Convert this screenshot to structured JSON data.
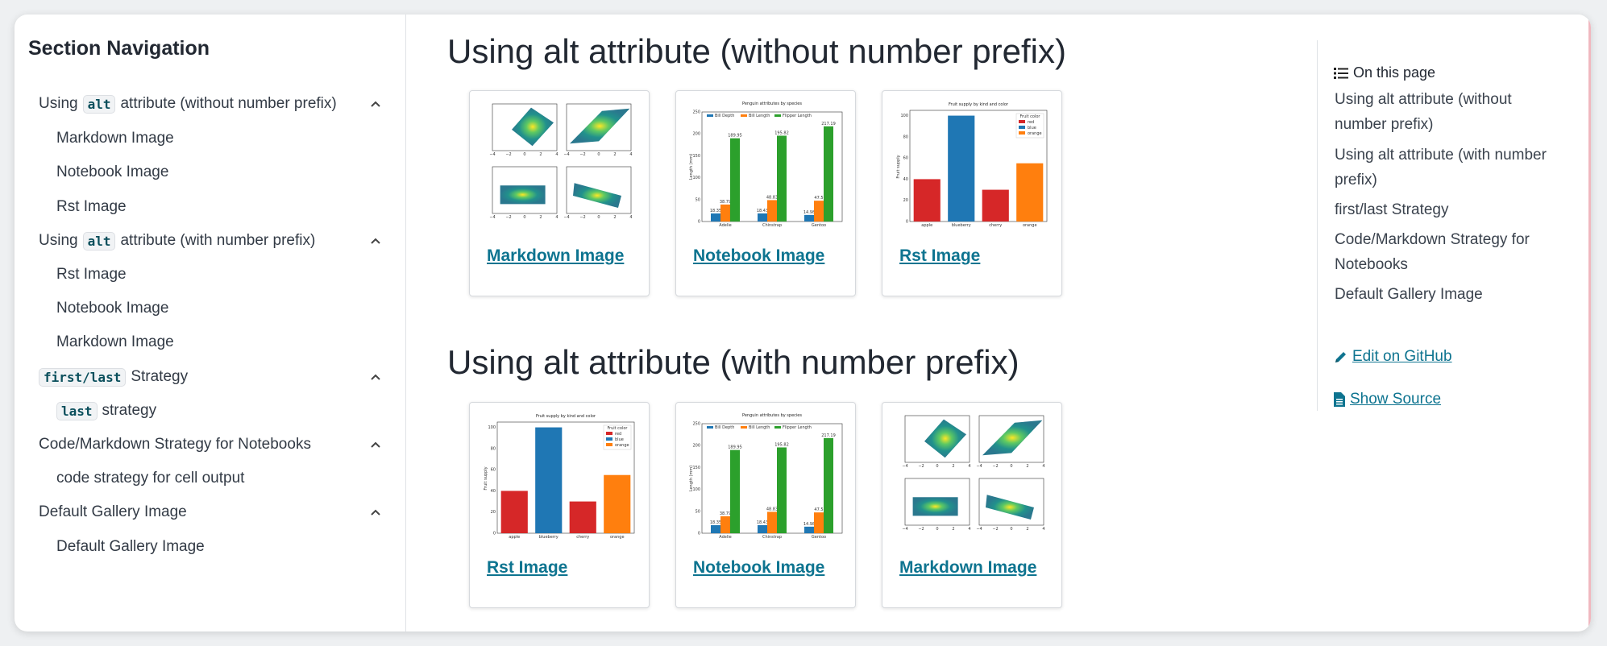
{
  "sidebar": {
    "title": "Section Navigation",
    "items": [
      {
        "pre": "Using",
        "code": "alt",
        "post": "attribute (without number prefix)"
      },
      {
        "label": "Markdown Image"
      },
      {
        "label": "Notebook Image"
      },
      {
        "label": "Rst Image"
      },
      {
        "pre": "Using",
        "code": "alt",
        "post": "attribute (with number prefix)"
      },
      {
        "label": "Rst Image"
      },
      {
        "label": "Notebook Image"
      },
      {
        "label": "Markdown Image"
      },
      {
        "code": "first/last",
        "post": "Strategy"
      },
      {
        "code": "last",
        "post": "strategy"
      },
      {
        "label": "Code/Markdown Strategy for Notebooks"
      },
      {
        "label": "code strategy for cell output"
      },
      {
        "label": "Default Gallery Image"
      },
      {
        "label": "Default Gallery Image"
      }
    ]
  },
  "main": {
    "sections": [
      {
        "heading": "Using alt attribute (without number prefix)",
        "cards": [
          {
            "label": "Markdown Image"
          },
          {
            "label": "Notebook Image"
          },
          {
            "label": "Rst Image"
          }
        ]
      },
      {
        "heading": "Using alt attribute (with number prefix)",
        "cards": [
          {
            "label": "Rst Image"
          },
          {
            "label": "Notebook Image"
          },
          {
            "label": "Markdown Image"
          }
        ]
      }
    ],
    "penguin_chart": {
      "title": "Penguin attributes by species",
      "ylabel": "Length (mm)",
      "legend": [
        "Bill Depth",
        "Bill Length",
        "Flipper Length"
      ],
      "categories": [
        "Adelie",
        "Chinstrap",
        "Gentoo"
      ],
      "series_values": [
        [
          18.35,
          18.43,
          14.98
        ],
        [
          38.79,
          48.83,
          47.5
        ],
        [
          189.95,
          195.82,
          217.19
        ]
      ],
      "value_labels": [
        [
          "18.35",
          "18.43",
          "14.98"
        ],
        [
          "38.79",
          "48.83",
          "47.5"
        ],
        [
          "189.95",
          "195.82",
          "217.19"
        ]
      ],
      "yticks": [
        "0",
        "50",
        "100",
        "150",
        "200",
        "250"
      ],
      "colors": [
        "#1f77b4",
        "#ff7f0e",
        "#2ca02c"
      ]
    },
    "fruit_chart": {
      "title": "Fruit supply by kind and color",
      "ylabel": "Fruit supply",
      "legend_title": "Fruit color",
      "legend": [
        "red",
        "blue",
        "orange"
      ],
      "categories": [
        "apple",
        "blueberry",
        "cherry",
        "orange"
      ],
      "values": [
        40,
        100,
        30,
        55
      ],
      "colors": [
        "#d62728",
        "#1f77b4",
        "#d62728",
        "#ff7f0e"
      ],
      "yticks": [
        "0",
        "20",
        "40",
        "60",
        "80",
        "100"
      ]
    },
    "affine_ticks": [
      "−4",
      "−2",
      "0",
      "2",
      "4"
    ]
  },
  "toc": {
    "title": "On this page",
    "entries": [
      {
        "line1": "Using alt attribute (without",
        "line2": "number prefix)"
      },
      {
        "line1": "Using alt attribute (with number",
        "line2": "prefix)"
      },
      {
        "line1": "first/last Strategy"
      },
      {
        "line1": "Code/Markdown Strategy for",
        "line2": "Notebooks"
      },
      {
        "line1": "Default Gallery Image"
      }
    ],
    "edit_label": "Edit on GitHub",
    "source_label": "Show Source"
  }
}
